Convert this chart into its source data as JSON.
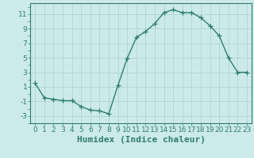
{
  "x": [
    0,
    1,
    2,
    3,
    4,
    5,
    6,
    7,
    8,
    9,
    10,
    11,
    12,
    13,
    14,
    15,
    16,
    17,
    18,
    19,
    20,
    21,
    22,
    23
  ],
  "y": [
    1.5,
    -0.5,
    -0.7,
    -0.9,
    -0.9,
    -1.7,
    -2.2,
    -2.3,
    -2.7,
    1.2,
    4.9,
    7.8,
    8.6,
    9.7,
    11.2,
    11.6,
    11.2,
    11.2,
    10.5,
    9.4,
    8.0,
    5.0,
    3.0,
    3.0
  ],
  "line_color": "#2e7d6e",
  "marker": "+",
  "marker_size": 4,
  "bg_color": "#cceaea",
  "grid_color_major": "#aed4d4",
  "grid_color_minor": "#c4e4e4",
  "xlabel": "Humidex (Indice chaleur)",
  "xlim": [
    -0.5,
    23.5
  ],
  "ylim": [
    -4,
    12.5
  ],
  "yticks": [
    -3,
    -1,
    1,
    3,
    5,
    7,
    9,
    11
  ],
  "xticks": [
    0,
    1,
    2,
    3,
    4,
    5,
    6,
    7,
    8,
    9,
    10,
    11,
    12,
    13,
    14,
    15,
    16,
    17,
    18,
    19,
    20,
    21,
    22,
    23
  ],
  "xtick_labels": [
    "0",
    "1",
    "2",
    "3",
    "4",
    "5",
    "6",
    "7",
    "8",
    "9",
    "10",
    "11",
    "12",
    "13",
    "14",
    "15",
    "16",
    "17",
    "18",
    "19",
    "20",
    "21",
    "22",
    "23"
  ],
  "tick_fontsize": 6.5,
  "xlabel_fontsize": 8,
  "linewidth": 1.0
}
